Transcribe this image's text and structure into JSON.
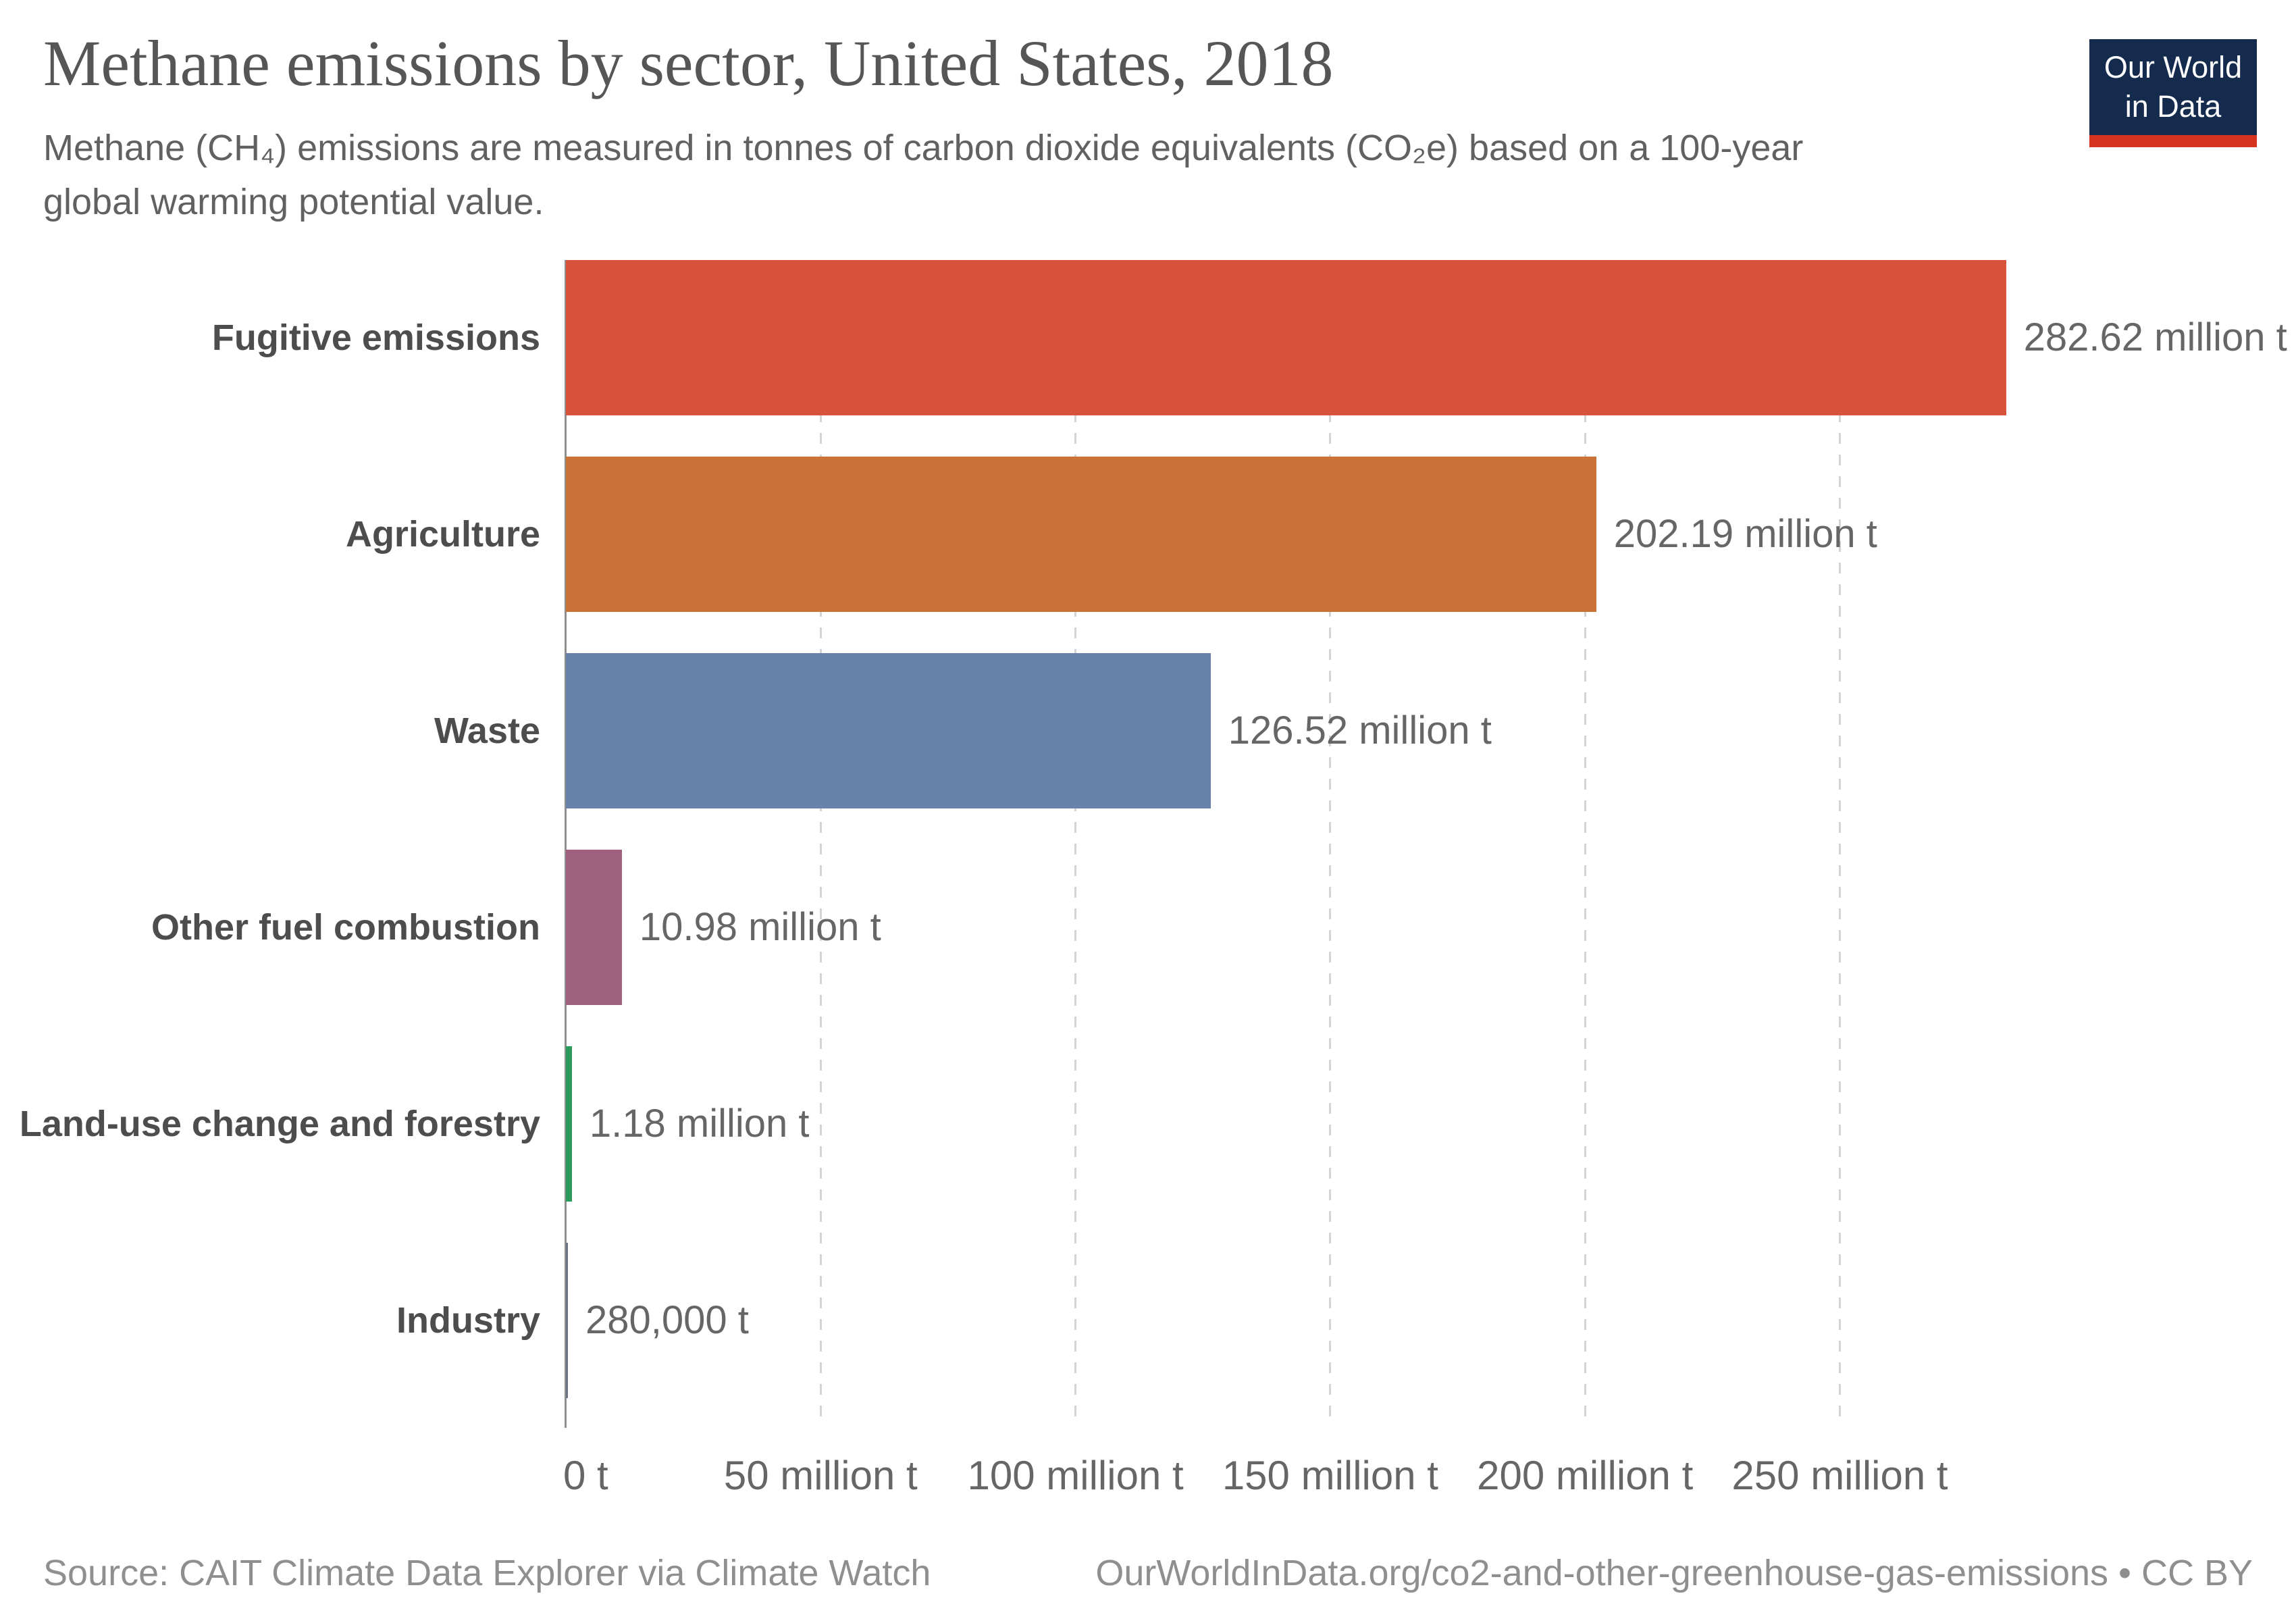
{
  "header": {
    "title": "Methane emissions by sector, United States, 2018",
    "subtitle_line1": "Methane (CH₄) emissions are measured in tonnes of carbon dioxide equivalents (CO₂e) based on a 100-year",
    "subtitle_line2": "global warming potential value."
  },
  "logo": {
    "line1": "Our World",
    "line2": "in Data",
    "bg_color": "#142b4e",
    "stripe_color": "#d5341f"
  },
  "chart_data": {
    "type": "bar",
    "orientation": "horizontal",
    "title": "Methane emissions by sector, United States, 2018",
    "categories": [
      "Fugitive emissions",
      "Agriculture",
      "Waste",
      "Other fuel combustion",
      "Land-use change and forestry",
      "Industry"
    ],
    "values_million_t": [
      282.62,
      202.19,
      126.52,
      10.98,
      1.18,
      0.28
    ],
    "value_labels": [
      "282.62 million t",
      "202.19 million t",
      "126.52 million t",
      "10.98 million t",
      "1.18 million t",
      "280,000 t"
    ],
    "bar_colors": [
      "#d8523c",
      "#ca7339",
      "#6882ac",
      "#a0617e",
      "#2b9a5a",
      "#6b7485"
    ],
    "x_tick_labels": [
      "0 t",
      "50 million t",
      "100 million t",
      "150 million t",
      "200 million t",
      "250 million t"
    ],
    "x_tick_values_million_t": [
      0,
      50,
      100,
      150,
      200,
      250
    ],
    "xlim_million_t": [
      0,
      336
    ],
    "grid": "vertical-dashed",
    "legend": "none",
    "axis_color": "#8f8f8f",
    "gridline_color": "#d4d4d4",
    "label_color": "#666666"
  },
  "footer": {
    "source": "Source: CAIT Climate Data Explorer via Climate Watch",
    "attribution": "OurWorldInData.org/co2-and-other-greenhouse-gas-emissions • CC BY"
  }
}
